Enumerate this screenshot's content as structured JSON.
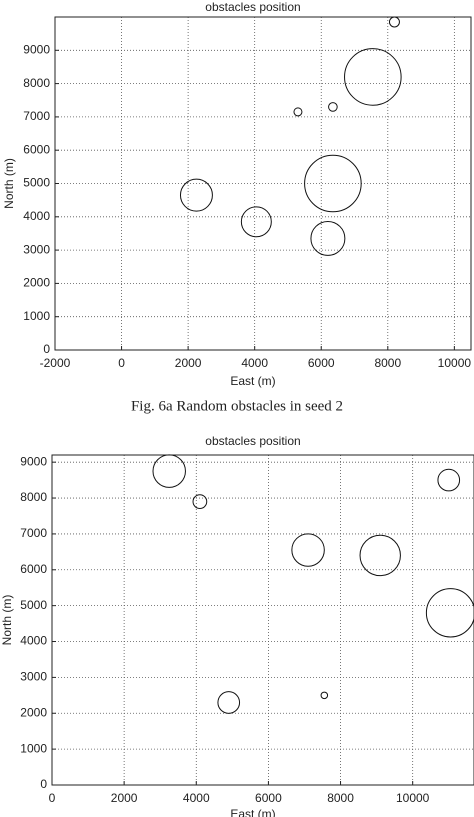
{
  "chart_data": [
    {
      "type": "bubble",
      "title": "obstacles position",
      "x_label": "East (m)",
      "y_label": "North (m)",
      "x": [
        8200,
        7550,
        5300,
        6350,
        6350,
        2250,
        4050,
        6200
      ],
      "y": [
        9850,
        8200,
        7150,
        7300,
        5000,
        4650,
        3850,
        3350
      ],
      "radius": [
        150,
        850,
        120,
        130,
        850,
        480,
        450,
        510
      ],
      "xlim": [
        -2000,
        10500
      ],
      "ylim": [
        0,
        10000
      ],
      "xticks": [
        -2000,
        0,
        2000,
        4000,
        6000,
        8000,
        10000
      ],
      "yticks": [
        0,
        1000,
        2000,
        3000,
        4000,
        5000,
        6000,
        7000,
        8000,
        9000
      ],
      "grid": true,
      "color": "#111111"
    },
    {
      "type": "bubble",
      "title": "obstacles position",
      "x_label": "East (m)",
      "y_label": "North (m)",
      "x": [
        3250,
        4100,
        7100,
        9100,
        11000,
        11050,
        4900,
        7550
      ],
      "y": [
        8750,
        7900,
        6550,
        6400,
        8500,
        4800,
        2300,
        2500
      ],
      "radius": [
        450,
        190,
        450,
        560,
        300,
        670,
        300,
        90
      ],
      "xlim": [
        0,
        11700
      ],
      "ylim": [
        0,
        9200
      ],
      "xticks": [
        0,
        2000,
        4000,
        6000,
        8000,
        10000
      ],
      "yticks": [
        0,
        1000,
        2000,
        3000,
        4000,
        5000,
        6000,
        7000,
        8000,
        9000
      ],
      "grid": true,
      "color": "#111111"
    }
  ],
  "caption": "Fig. 6a Random obstacles in seed 2"
}
